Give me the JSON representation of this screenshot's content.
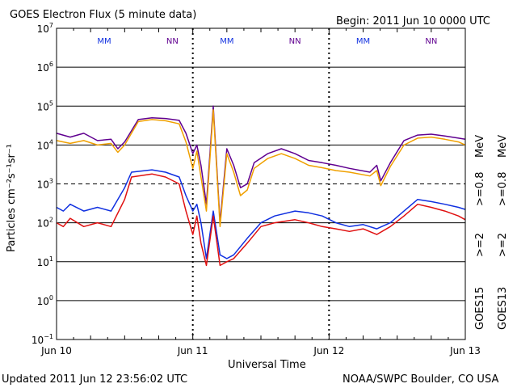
{
  "header": {
    "title": "GOES Electron Flux (5 minute data)",
    "begin": "Begin: 2011 Jun 10 0000 UTC"
  },
  "footer": {
    "updated": "Updated 2011 Jun 12 23:56:02 UTC",
    "credit": "NOAA/SWPC Boulder, CO USA"
  },
  "right_legend": {
    "goes15": "GOES15",
    "goes13": "GOES13",
    "ge2_a": ">=2",
    "ge2_b": ">=2",
    "ge08_a": ">=0.8",
    "ge08_b": ">=0.8",
    "mev": "MeV"
  },
  "colors": {
    "goes15_2mev": "#1030e0",
    "goes13_2mev": "#e01010",
    "goes15_08mev": "#600090",
    "goes13_08mev": "#f0a000",
    "M_marker": "#1030e0",
    "N_marker": "#600090"
  },
  "chart_data": {
    "type": "line",
    "title": "GOES Electron Flux (5 minute data)",
    "xlabel": "Universal Time",
    "ylabel": "Particles cm⁻²s⁻¹sr⁻¹",
    "x_unit": "days since 2011 Jun 10 0000 UTC",
    "xlim": [
      0,
      3
    ],
    "x_ticks": [
      "Jun 10",
      "Jun 11",
      "Jun 12",
      "Jun 13"
    ],
    "y_scale": "log",
    "ylim": [
      0.1,
      10000000
    ],
    "y_ticks": [
      {
        "base": "10",
        "exp": "7"
      },
      {
        "base": "10",
        "exp": "6"
      },
      {
        "base": "10",
        "exp": "5"
      },
      {
        "base": "10",
        "exp": "4"
      },
      {
        "base": "10",
        "exp": "3"
      },
      {
        "base": "10",
        "exp": "2"
      },
      {
        "base": "10",
        "exp": "1"
      },
      {
        "base": "10",
        "exp": "0"
      },
      {
        "base": "10",
        "exp": "−1"
      }
    ],
    "gridlines_y": [
      1,
      10,
      100,
      10000,
      100000,
      1000000
    ],
    "dashed_threshold_y": 1000,
    "markers": [
      {
        "label": "M",
        "x": 0.35,
        "color": "M_marker"
      },
      {
        "label": "N",
        "x": 0.85,
        "color": "N_marker"
      },
      {
        "label": "M",
        "x": 1.25,
        "color": "M_marker"
      },
      {
        "label": "N",
        "x": 1.75,
        "color": "N_marker"
      },
      {
        "label": "M",
        "x": 2.25,
        "color": "M_marker"
      },
      {
        "label": "N",
        "x": 2.75,
        "color": "N_marker"
      }
    ],
    "series": [
      {
        "name": "GOES15 >=0.8 MeV",
        "color": "goes15_08mev",
        "points": [
          [
            0,
            20000
          ],
          [
            0.1,
            16000
          ],
          [
            0.2,
            20000
          ],
          [
            0.3,
            13000
          ],
          [
            0.4,
            14000
          ],
          [
            0.45,
            8000
          ],
          [
            0.5,
            12000
          ],
          [
            0.6,
            45000
          ],
          [
            0.7,
            50000
          ],
          [
            0.8,
            48000
          ],
          [
            0.9,
            43000
          ],
          [
            0.95,
            20000
          ],
          [
            1.0,
            6000
          ],
          [
            1.03,
            10000
          ],
          [
            1.06,
            3000
          ],
          [
            1.1,
            300
          ],
          [
            1.15,
            100000
          ],
          [
            1.2,
            100
          ],
          [
            1.25,
            8000
          ],
          [
            1.3,
            3000
          ],
          [
            1.35,
            800
          ],
          [
            1.4,
            1000
          ],
          [
            1.45,
            3500
          ],
          [
            1.55,
            6000
          ],
          [
            1.65,
            8000
          ],
          [
            1.75,
            6000
          ],
          [
            1.85,
            4000
          ],
          [
            1.95,
            3500
          ],
          [
            2.05,
            3000
          ],
          [
            2.15,
            2500
          ],
          [
            2.3,
            2000
          ],
          [
            2.35,
            3000
          ],
          [
            2.38,
            1200
          ],
          [
            2.45,
            3500
          ],
          [
            2.55,
            13000
          ],
          [
            2.65,
            18000
          ],
          [
            2.75,
            19000
          ],
          [
            2.85,
            17000
          ],
          [
            2.95,
            15000
          ],
          [
            3.0,
            14000
          ]
        ]
      },
      {
        "name": "GOES13 >=0.8 MeV",
        "color": "goes13_08mev",
        "points": [
          [
            0,
            13000
          ],
          [
            0.1,
            11000
          ],
          [
            0.2,
            13000
          ],
          [
            0.3,
            10000
          ],
          [
            0.4,
            11000
          ],
          [
            0.45,
            6500
          ],
          [
            0.5,
            10000
          ],
          [
            0.6,
            40000
          ],
          [
            0.7,
            45000
          ],
          [
            0.8,
            42000
          ],
          [
            0.9,
            35000
          ],
          [
            0.95,
            12000
          ],
          [
            1.0,
            2500
          ],
          [
            1.03,
            7000
          ],
          [
            1.06,
            1500
          ],
          [
            1.1,
            200
          ],
          [
            1.15,
            80000
          ],
          [
            1.2,
            80
          ],
          [
            1.25,
            6000
          ],
          [
            1.3,
            2000
          ],
          [
            1.35,
            500
          ],
          [
            1.4,
            700
          ],
          [
            1.45,
            2500
          ],
          [
            1.55,
            4500
          ],
          [
            1.65,
            6000
          ],
          [
            1.75,
            4500
          ],
          [
            1.85,
            3000
          ],
          [
            1.95,
            2600
          ],
          [
            2.05,
            2200
          ],
          [
            2.15,
            2000
          ],
          [
            2.3,
            1600
          ],
          [
            2.35,
            2200
          ],
          [
            2.38,
            900
          ],
          [
            2.45,
            2800
          ],
          [
            2.55,
            10000
          ],
          [
            2.65,
            15000
          ],
          [
            2.75,
            16000
          ],
          [
            2.85,
            14000
          ],
          [
            2.95,
            12000
          ],
          [
            3.0,
            10000
          ]
        ]
      },
      {
        "name": "GOES15 >=2 MeV",
        "color": "goes15_2mev",
        "points": [
          [
            0,
            250
          ],
          [
            0.05,
            200
          ],
          [
            0.1,
            300
          ],
          [
            0.2,
            200
          ],
          [
            0.3,
            250
          ],
          [
            0.4,
            200
          ],
          [
            0.5,
            800
          ],
          [
            0.55,
            2000
          ],
          [
            0.7,
            2300
          ],
          [
            0.8,
            2000
          ],
          [
            0.9,
            1500
          ],
          [
            0.95,
            500
          ],
          [
            1.0,
            200
          ],
          [
            1.03,
            300
          ],
          [
            1.06,
            100
          ],
          [
            1.1,
            12
          ],
          [
            1.15,
            200
          ],
          [
            1.2,
            15
          ],
          [
            1.25,
            12
          ],
          [
            1.3,
            15
          ],
          [
            1.4,
            40
          ],
          [
            1.5,
            100
          ],
          [
            1.6,
            150
          ],
          [
            1.75,
            200
          ],
          [
            1.85,
            180
          ],
          [
            1.95,
            150
          ],
          [
            2.05,
            100
          ],
          [
            2.15,
            80
          ],
          [
            2.25,
            90
          ],
          [
            2.35,
            70
          ],
          [
            2.45,
            100
          ],
          [
            2.55,
            200
          ],
          [
            2.65,
            400
          ],
          [
            2.75,
            350
          ],
          [
            2.85,
            300
          ],
          [
            2.95,
            250
          ],
          [
            3.0,
            220
          ]
        ]
      },
      {
        "name": "GOES13 >=2 MeV",
        "color": "goes13_2mev",
        "points": [
          [
            0,
            100
          ],
          [
            0.05,
            80
          ],
          [
            0.1,
            130
          ],
          [
            0.2,
            80
          ],
          [
            0.3,
            100
          ],
          [
            0.4,
            80
          ],
          [
            0.5,
            400
          ],
          [
            0.55,
            1500
          ],
          [
            0.7,
            1800
          ],
          [
            0.8,
            1500
          ],
          [
            0.9,
            1000
          ],
          [
            0.95,
            200
          ],
          [
            1.0,
            50
          ],
          [
            1.03,
            150
          ],
          [
            1.06,
            30
          ],
          [
            1.1,
            8
          ],
          [
            1.15,
            150
          ],
          [
            1.2,
            8
          ],
          [
            1.25,
            10
          ],
          [
            1.3,
            12
          ],
          [
            1.4,
            30
          ],
          [
            1.5,
            80
          ],
          [
            1.6,
            100
          ],
          [
            1.75,
            120
          ],
          [
            1.85,
            100
          ],
          [
            1.95,
            80
          ],
          [
            2.05,
            70
          ],
          [
            2.15,
            60
          ],
          [
            2.25,
            70
          ],
          [
            2.35,
            50
          ],
          [
            2.45,
            80
          ],
          [
            2.55,
            150
          ],
          [
            2.65,
            300
          ],
          [
            2.75,
            250
          ],
          [
            2.85,
            200
          ],
          [
            2.95,
            150
          ],
          [
            3.0,
            120
          ]
        ]
      }
    ]
  }
}
